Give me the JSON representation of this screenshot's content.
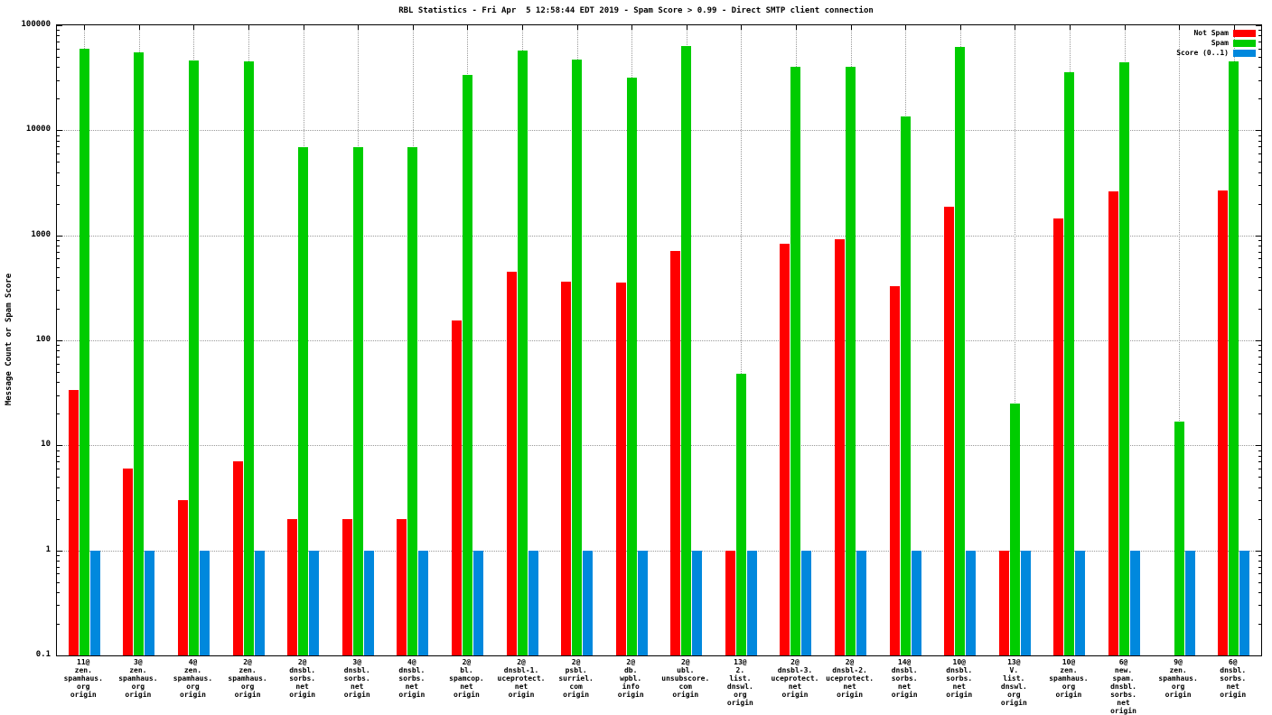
{
  "title": "RBL Statistics - Fri Apr  5 12:58:44 EDT 2019 - Spam Score > 0.99 - Direct SMTP client connection",
  "ylabel": "Message Count or Spam Score",
  "chart_data": {
    "type": "bar",
    "yscale": "log",
    "grid": true,
    "legend_position": "top-right-inside",
    "ylim": [
      0.1,
      100000
    ],
    "yticks": [
      100000,
      10000,
      1000,
      100,
      10,
      1,
      0.1
    ],
    "categories": [
      [
        "11@",
        "zen.",
        "spamhaus.",
        "org",
        "origin"
      ],
      [
        "3@",
        "zen.",
        "spamhaus.",
        "org",
        "origin"
      ],
      [
        "4@",
        "zen.",
        "spamhaus.",
        "org",
        "origin"
      ],
      [
        "2@",
        "zen.",
        "spamhaus.",
        "org",
        "origin"
      ],
      [
        "2@",
        "dnsbl.",
        "sorbs.",
        "net",
        "origin"
      ],
      [
        "3@",
        "dnsbl.",
        "sorbs.",
        "net",
        "origin"
      ],
      [
        "4@",
        "dnsbl.",
        "sorbs.",
        "net",
        "origin"
      ],
      [
        "2@",
        "bl.",
        "spamcop.",
        "net",
        "origin"
      ],
      [
        "2@",
        "dnsbl-1.",
        "uceprotect.",
        "net",
        "origin"
      ],
      [
        "2@",
        "psbl.",
        "surriel.",
        "com",
        "origin"
      ],
      [
        "2@",
        "db.",
        "wpbl.",
        "info",
        "origin"
      ],
      [
        "2@",
        "ubl.",
        "unsubscore.",
        "com",
        "origin"
      ],
      [
        "13@",
        "2.",
        "list.",
        "dnswl.",
        "org",
        "origin"
      ],
      [
        "2@",
        "dnsbl-3.",
        "uceprotect.",
        "net",
        "origin"
      ],
      [
        "2@",
        "dnsbl-2.",
        "uceprotect.",
        "net",
        "origin"
      ],
      [
        "14@",
        "dnsbl.",
        "sorbs.",
        "net",
        "origin"
      ],
      [
        "10@",
        "dnsbl.",
        "sorbs.",
        "net",
        "origin"
      ],
      [
        "13@",
        "V.",
        "list.",
        "dnswl.",
        "org",
        "origin"
      ],
      [
        "10@",
        "zen.",
        "spamhaus.",
        "org",
        "origin"
      ],
      [
        "6@",
        "new.",
        "spam.",
        "dnsbl.",
        "sorbs.",
        "net",
        "origin"
      ],
      [
        "9@",
        "zen.",
        "spamhaus.",
        "org",
        "origin"
      ],
      [
        "6@",
        "dnsbl.",
        "sorbs.",
        "net",
        "origin"
      ]
    ],
    "series": [
      {
        "name": "Not Spam",
        "color": "#ff0000",
        "values": [
          34,
          6,
          3,
          7,
          2,
          2,
          2,
          155,
          450,
          360,
          355,
          710,
          1,
          830,
          920,
          330,
          1870,
          1,
          1450,
          2600,
          0,
          2700
        ]
      },
      {
        "name": "Spam",
        "color": "#00cc00",
        "values": [
          60000,
          55000,
          46000,
          45000,
          6900,
          6900,
          6900,
          34000,
          58000,
          47000,
          32000,
          63000,
          48,
          40000,
          40000,
          13500,
          62000,
          25,
          36000,
          44000,
          17,
          45000
        ]
      },
      {
        "name": "Score (0..1)",
        "color": "#0088dd",
        "values": [
          1,
          1,
          1,
          1,
          1,
          1,
          1,
          1,
          1,
          1,
          1,
          1,
          1,
          1,
          1,
          1,
          1,
          1,
          1,
          1,
          1,
          1
        ]
      }
    ]
  }
}
